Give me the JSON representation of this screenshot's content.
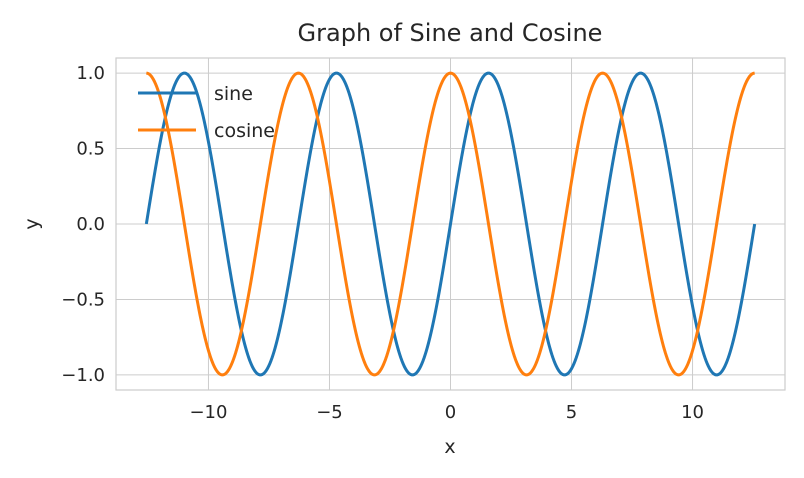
{
  "chart_data": {
    "type": "line",
    "title": "Graph of Sine and Cosine",
    "xlabel": "x",
    "ylabel": "y",
    "xlim": [
      -13.82,
      13.82
    ],
    "ylim": [
      -1.1,
      1.1
    ],
    "xticks": [
      -10,
      -5,
      0,
      5,
      10
    ],
    "xtick_labels": [
      "−10",
      "−5",
      "0",
      "5",
      "10"
    ],
    "yticks": [
      -1.0,
      -0.5,
      0.0,
      0.5,
      1.0
    ],
    "ytick_labels": [
      "−1.0",
      "−0.5",
      "0.0",
      "0.5",
      "1.0"
    ],
    "grid": true,
    "legend_position": "top-left",
    "x_range": [
      -12.566,
      12.566
    ],
    "series": [
      {
        "name": "sine",
        "function": "sin(x)",
        "color": "#1f77b4"
      },
      {
        "name": "cosine",
        "function": "cos(x)",
        "color": "#ff7f0e"
      }
    ]
  }
}
